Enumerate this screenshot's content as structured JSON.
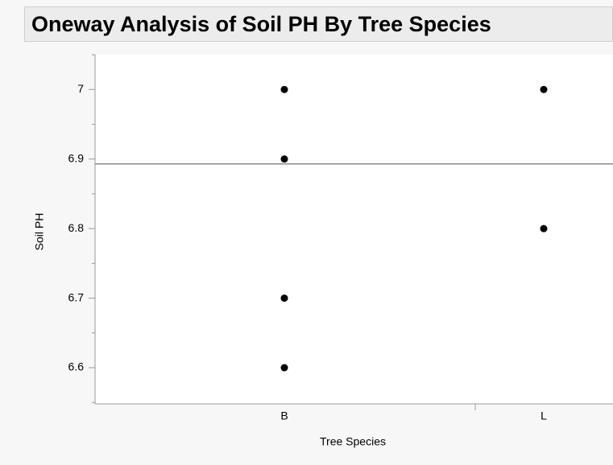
{
  "chart_data": {
    "type": "scatter",
    "title": "Oneway Analysis of Soil PH By Tree Species",
    "x_label": "Tree Species",
    "y_label": "Soil PH",
    "categories": [
      "B",
      "L"
    ],
    "series": [
      {
        "name": "B",
        "color": "#000000",
        "values": [
          7.0,
          6.9,
          6.7,
          6.6
        ]
      },
      {
        "name": "L",
        "color": "#000000",
        "values": [
          7.0,
          6.8
        ]
      }
    ],
    "reference_line": 6.893,
    "ylim": [
      6.548,
      7.05
    ],
    "yticks": [
      6.6,
      6.7,
      6.8,
      6.9,
      7
    ],
    "yminorticks": [
      6.55,
      6.65,
      6.75,
      6.85,
      6.95,
      7.05
    ]
  }
}
